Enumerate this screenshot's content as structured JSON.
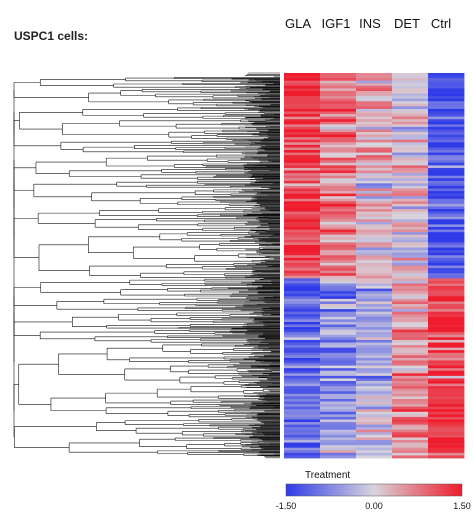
{
  "figure_title": "USPC1 cells:",
  "chart_data": {
    "type": "heatmap",
    "columns": [
      "GLA",
      "IGF1",
      "INS",
      "DET",
      "Ctrl"
    ],
    "scale": {
      "title": "Treatment",
      "min": -1.5,
      "mid": 0.0,
      "max": 1.5,
      "tick_labels": [
        "-1.50",
        "0.00",
        "1.50"
      ],
      "colors": {
        "low": "#2f3be8",
        "mid": "#d8d4dc",
        "high": "#ee1c2c"
      }
    },
    "clusters": [
      {
        "name": "upper",
        "rows": 80,
        "column_means": [
          1.2,
          0.7,
          0.3,
          0.0,
          -1.3
        ]
      },
      {
        "name": "lower",
        "rows": 70,
        "column_means": [
          -1.1,
          -0.6,
          -0.2,
          0.5,
          1.2
        ]
      }
    ],
    "dendrogram": {
      "side": "left",
      "top_level_split": 2
    }
  }
}
